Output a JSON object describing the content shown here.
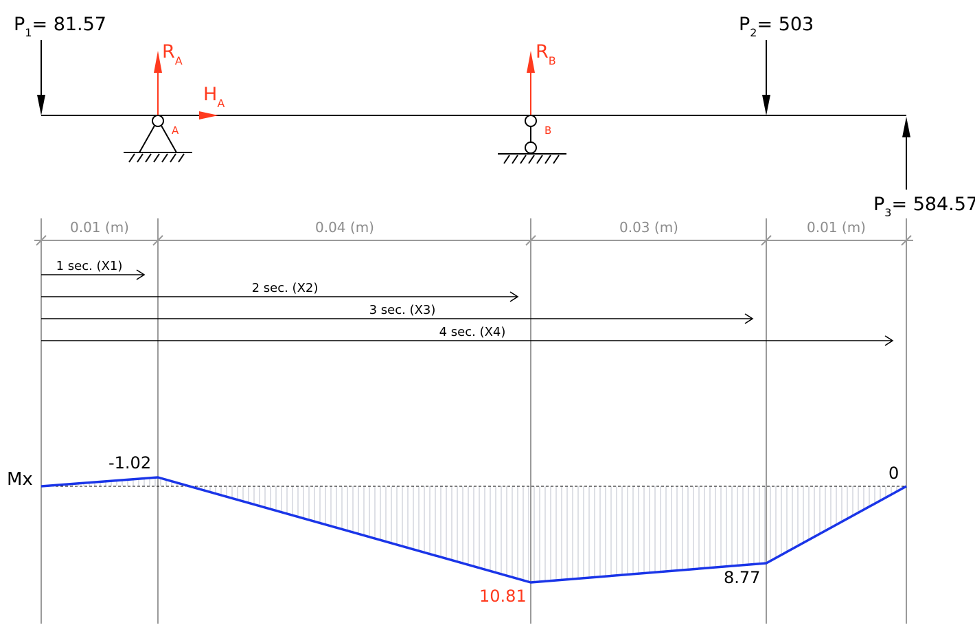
{
  "loads": {
    "p1": {
      "name": "P",
      "sub": "1",
      "value": "= 81.57"
    },
    "p2": {
      "name": "P",
      "sub": "2",
      "value": "= 503"
    },
    "p3": {
      "name": "P",
      "sub": "3",
      "value": "= 584.57"
    }
  },
  "reactions": {
    "ra": {
      "name": "R",
      "sub": "A"
    },
    "rb": {
      "name": "R",
      "sub": "B"
    },
    "ha": {
      "name": "H",
      "sub": "A"
    }
  },
  "supports": {
    "a": "A",
    "b": "B"
  },
  "spans": [
    "0.01 (m)",
    "0.04 (m)",
    "0.03 (m)",
    "0.01 (m)"
  ],
  "sections": [
    "1 sec. (X1)",
    "2 sec. (X2)",
    "3 sec. (X3)",
    "4 sec. (X4)"
  ],
  "diagram": {
    "label": "Mx",
    "values": [
      "-1.02",
      "10.81",
      "8.77",
      "0"
    ]
  },
  "colors": {
    "reaction": "#ff3a1e",
    "moment_line": "#1a35e8",
    "hatch": "#c8ccd4",
    "grid": "#9a9a9a"
  }
}
